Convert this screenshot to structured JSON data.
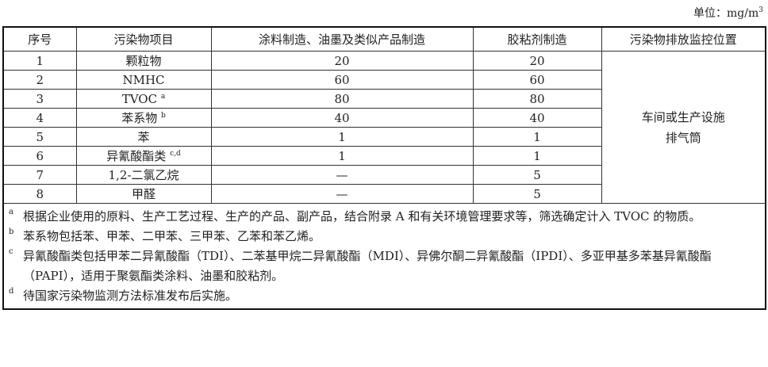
{
  "unit": {
    "label": "单位：mg/m",
    "exp": "3"
  },
  "headers": [
    "序号",
    "污染物项目",
    "涂料制造、油墨及类似产品制造",
    "胶粘剂制造",
    "污染物排放监控位置"
  ],
  "rows": [
    {
      "no": "1",
      "item": "颗粒物",
      "sup": "",
      "paint": "20",
      "adhesive": "20"
    },
    {
      "no": "2",
      "item": "NMHC",
      "sup": "",
      "paint": "60",
      "adhesive": "60"
    },
    {
      "no": "3",
      "item": "TVOC",
      "sup": "a",
      "paint": "80",
      "adhesive": "80"
    },
    {
      "no": "4",
      "item": "苯系物",
      "sup": "b",
      "paint": "40",
      "adhesive": "40"
    },
    {
      "no": "5",
      "item": "苯",
      "sup": "",
      "paint": "1",
      "adhesive": "1"
    },
    {
      "no": "6",
      "item": "异氰酸酯类",
      "sup": "c,d",
      "paint": "1",
      "adhesive": "1"
    },
    {
      "no": "7",
      "item": "1,2-二氯乙烷",
      "sup": "",
      "paint": "—",
      "adhesive": "5"
    },
    {
      "no": "8",
      "item": "甲醛",
      "sup": "",
      "paint": "—",
      "adhesive": "5"
    }
  ],
  "location": {
    "line1": "车间或生产设施",
    "line2": "排气筒"
  },
  "notes": [
    {
      "mark": "a",
      "text": "根据企业使用的原料、生产工艺过程、生产的产品、副产品，结合附录 A 和有关环境管理要求等，筛选确定计入 TVOC 的物质。"
    },
    {
      "mark": "b",
      "text": "苯系物包括苯、甲苯、二甲苯、三甲苯、乙苯和苯乙烯。"
    },
    {
      "mark": "c",
      "text": "异氰酸酯类包括甲苯二异氰酸酯（TDI）、二苯基甲烷二异氰酸酯（MDI）、异佛尔酮二异氰酸酯（IPDI）、多亚甲基多苯基异氰酸酯（PAPI），适用于聚氨酯类涂料、油墨和胶粘剂。"
    },
    {
      "mark": "d",
      "text": "待国家污染物监测方法标准发布后实施。"
    }
  ]
}
